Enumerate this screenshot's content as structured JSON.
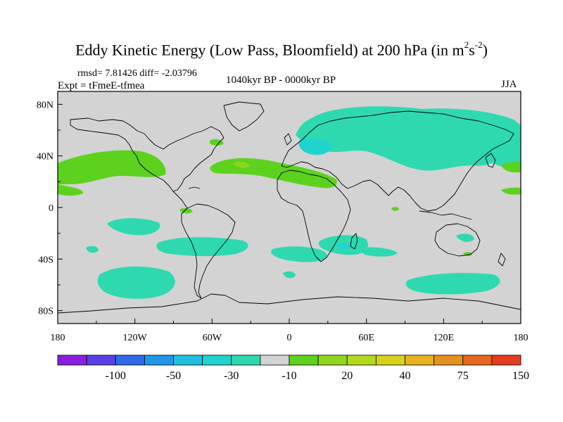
{
  "title": {
    "main": "Eddy Kinetic Energy (Low Pass, Bloomfield) at 200 hPa (in m",
    "sup1": "2",
    "mid": "s",
    "sup2": "-2",
    "end": ")"
  },
  "stats": "rmsd= 7.81426 diff= -2.03796",
  "experiment": "Expt = tFmeE-tfmea",
  "period": "1040kyr BP - 0000kyr BP",
  "season": "JJA",
  "map": {
    "lat_labels": [
      "80N",
      "40N",
      "0",
      "40S",
      "80S"
    ],
    "lat_values": [
      80,
      40,
      0,
      -40,
      -80
    ],
    "lon_labels": [
      "180",
      "120W",
      "60W",
      "0",
      "60E",
      "120E",
      "180"
    ],
    "lon_values": [
      -180,
      -120,
      -60,
      0,
      60,
      120,
      180
    ],
    "background_color": "#d3d3d3"
  },
  "colorbar": {
    "colors": [
      "#8a1fe0",
      "#5a3ee8",
      "#2f6be8",
      "#1f96e8",
      "#1fbde0",
      "#1fd4cf",
      "#2fd9b0",
      "#d3d3d3",
      "#5cd21e",
      "#8ed61e",
      "#b3d81e",
      "#d6d21e",
      "#e6b21e",
      "#e6901e",
      "#e6661e",
      "#e63b1e"
    ],
    "labels": [
      "-100",
      "-50",
      "-30",
      "-10",
      "20",
      "40",
      "75",
      "150"
    ]
  },
  "palette": {
    "teal": "#2fd9b0",
    "cyan": "#1fd4cf",
    "green": "#5cd21e",
    "lightgreen": "#8ed61e",
    "yellow": "#b3d81e",
    "orange": "#e6b21e"
  }
}
